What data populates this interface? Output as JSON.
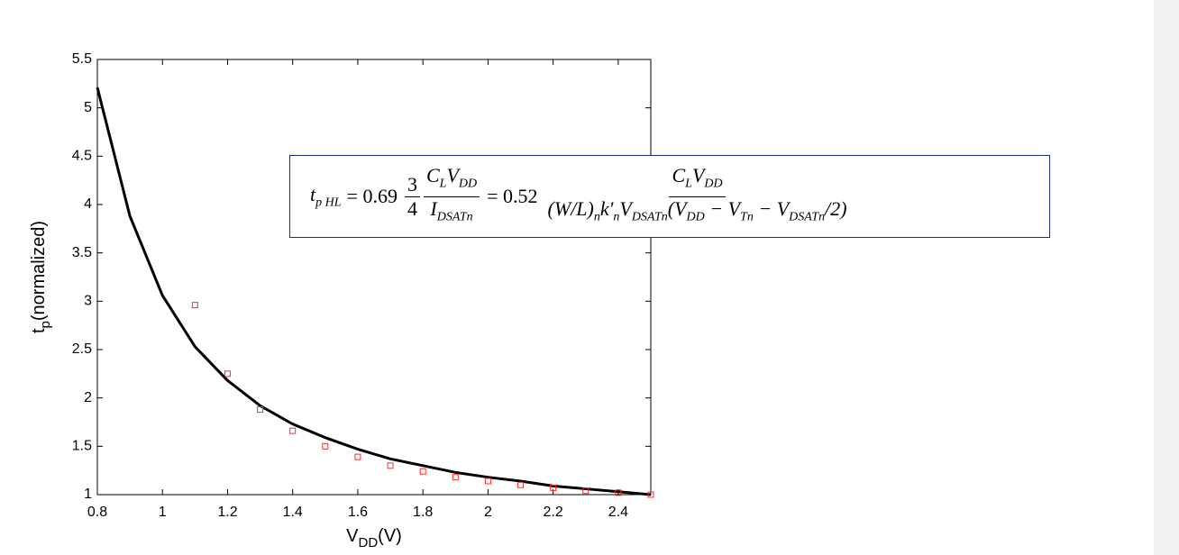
{
  "chart_data": {
    "type": "line",
    "xlabel": [
      "V",
      "DD",
      "(V)"
    ],
    "ylabel": [
      "t",
      "p",
      "(normalized)"
    ],
    "xlim": [
      0.8,
      2.5
    ],
    "ylim": [
      1,
      5.5
    ],
    "xticks": [
      0.8,
      1,
      1.2,
      1.4,
      1.6,
      1.8,
      2,
      2.2,
      2.4
    ],
    "yticks": [
      1,
      1.5,
      2,
      2.5,
      3,
      3.5,
      4,
      4.5,
      5,
      5.5
    ],
    "series": [
      {
        "mode": "line",
        "color": "#000000",
        "x": [
          0.8,
          0.9,
          1.0,
          1.1,
          1.2,
          1.3,
          1.4,
          1.5,
          1.6,
          1.7,
          1.8,
          1.9,
          2.0,
          2.1,
          2.2,
          2.3,
          2.4,
          2.5
        ],
        "values": [
          5.21,
          3.88,
          3.06,
          2.53,
          2.18,
          1.92,
          1.73,
          1.59,
          1.47,
          1.37,
          1.3,
          1.23,
          1.18,
          1.14,
          1.09,
          1.06,
          1.03,
          1.0
        ]
      },
      {
        "mode": "marker",
        "color": "#ff2a2a",
        "x": [
          1.1,
          1.2,
          1.3,
          1.4,
          1.5,
          1.6,
          1.7,
          1.8,
          1.9,
          2.0,
          2.1,
          2.2,
          2.3,
          2.4,
          2.5
        ],
        "values": [
          2.96,
          2.25,
          1.88,
          1.66,
          1.5,
          1.39,
          1.3,
          1.24,
          1.18,
          1.14,
          1.1,
          1.07,
          1.04,
          1.02,
          1.0
        ]
      }
    ],
    "equation": {
      "lhs": [
        "t",
        "p HL"
      ],
      "eq1": "= 0.69",
      "f1_num": "3",
      "f1_den": "4",
      "f2_num": [
        "C",
        "L",
        "V",
        "DD"
      ],
      "f2_den": [
        "I",
        "DSATn"
      ],
      "eq2": "= 0.52",
      "f3_num": [
        "C",
        "L",
        "V",
        "DD"
      ],
      "f3_den": [
        "(W/L)",
        "n",
        "k'",
        "n",
        "V",
        "DSATn",
        "(V",
        "DD",
        " − V",
        "Tn",
        " − V",
        "DSATn",
        "/2)"
      ]
    }
  }
}
